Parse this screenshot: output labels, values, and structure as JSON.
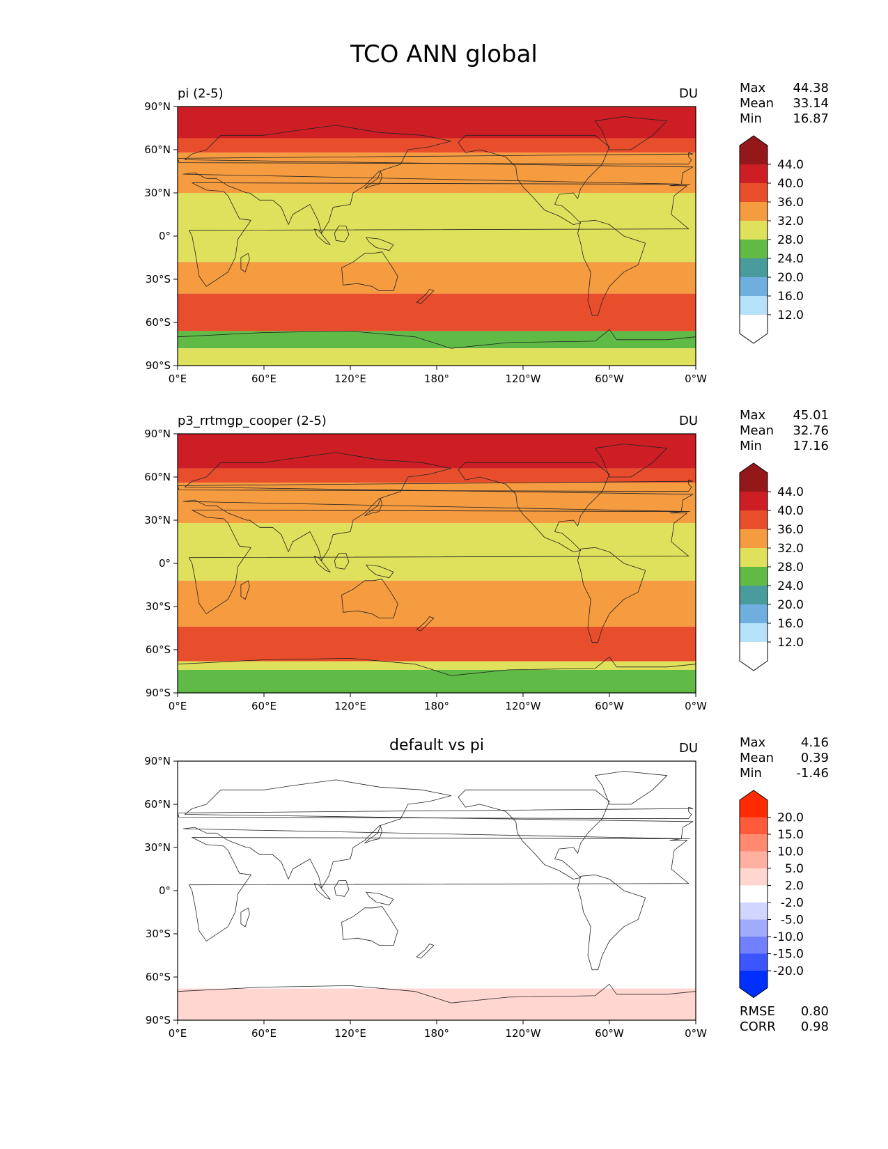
{
  "figure": {
    "title": "TCO ANN global"
  },
  "axes": {
    "y_ticks": [
      "90°N",
      "60°N",
      "30°N",
      "0°",
      "30°S",
      "60°S",
      "90°S"
    ],
    "x_ticks": [
      "0°E",
      "60°E",
      "120°E",
      "180°",
      "120°W",
      "60°W",
      "0°W"
    ]
  },
  "panels": [
    {
      "title": "pi (2-5)",
      "units": "DU",
      "stats": [
        {
          "label": "Max",
          "value": "44.38"
        },
        {
          "label": "Mean",
          "value": "33.14"
        },
        {
          "label": "Min",
          "value": "16.87"
        }
      ],
      "colorbar": {
        "labels": [
          "44.0",
          "40.0",
          "36.0",
          "32.0",
          "28.0",
          "24.0",
          "20.0",
          "16.0",
          "12.0"
        ],
        "colors": [
          "#941719",
          "#cc1e24",
          "#e84e2c",
          "#f59b40",
          "#dfe05b",
          "#60bb46",
          "#4a9b9b",
          "#6fafdf",
          "#b5e2f8",
          "#ffffff"
        ]
      },
      "bands": [
        {
          "lat_from": 90,
          "lat_to": 68,
          "color": "#cc1e24"
        },
        {
          "lat_from": 68,
          "lat_to": 58,
          "color": "#e84e2c"
        },
        {
          "lat_from": 58,
          "lat_to": 30,
          "color": "#f59b40"
        },
        {
          "lat_from": 30,
          "lat_to": -18,
          "color": "#dfe05b"
        },
        {
          "lat_from": -18,
          "lat_to": -40,
          "color": "#f59b40"
        },
        {
          "lat_from": -40,
          "lat_to": -66,
          "color": "#e84e2c"
        },
        {
          "lat_from": -66,
          "lat_to": -78,
          "color": "#60bb46"
        },
        {
          "lat_from": -78,
          "lat_to": -90,
          "color": "#dfe05b"
        }
      ]
    },
    {
      "title": "p3_rrtmgp_cooper (2-5)",
      "units": "DU",
      "stats": [
        {
          "label": "Max",
          "value": "45.01"
        },
        {
          "label": "Mean",
          "value": "32.76"
        },
        {
          "label": "Min",
          "value": "17.16"
        }
      ],
      "colorbar": {
        "labels": [
          "44.0",
          "40.0",
          "36.0",
          "32.0",
          "28.0",
          "24.0",
          "20.0",
          "16.0",
          "12.0"
        ],
        "colors": [
          "#941719",
          "#cc1e24",
          "#e84e2c",
          "#f59b40",
          "#dfe05b",
          "#60bb46",
          "#4a9b9b",
          "#6fafdf",
          "#b5e2f8",
          "#ffffff"
        ]
      },
      "bands": [
        {
          "lat_from": 90,
          "lat_to": 66,
          "color": "#cc1e24"
        },
        {
          "lat_from": 66,
          "lat_to": 56,
          "color": "#e84e2c"
        },
        {
          "lat_from": 56,
          "lat_to": 28,
          "color": "#f59b40"
        },
        {
          "lat_from": 28,
          "lat_to": -12,
          "color": "#dfe05b"
        },
        {
          "lat_from": -12,
          "lat_to": -44,
          "color": "#f59b40"
        },
        {
          "lat_from": -44,
          "lat_to": -68,
          "color": "#e84e2c"
        },
        {
          "lat_from": -68,
          "lat_to": -74,
          "color": "#dfe05b"
        },
        {
          "lat_from": -74,
          "lat_to": -90,
          "color": "#60bb46"
        }
      ]
    },
    {
      "title": "default vs pi",
      "units": "DU",
      "stats": [
        {
          "label": "Max",
          "value": "4.16"
        },
        {
          "label": "Mean",
          "value": "0.39"
        },
        {
          "label": "Min",
          "value": "-1.46"
        }
      ],
      "extra_stats": [
        {
          "label": "RMSE",
          "value": "0.80"
        },
        {
          "label": "CORR",
          "value": "0.98"
        }
      ],
      "colorbar": {
        "labels": [
          "20.0",
          "15.0",
          "10.0",
          "5.0",
          "2.0",
          "-2.0",
          "-5.0",
          "-10.0",
          "-15.0",
          "-20.0"
        ],
        "colors": [
          "#ff2a00",
          "#ff5a3c",
          "#ff8a70",
          "#ffb0a0",
          "#ffd6d0",
          "#ffffff",
          "#d0d6ff",
          "#a0aaff",
          "#7080ff",
          "#3c55ff",
          "#0030ff"
        ]
      },
      "bands": [
        {
          "lat_from": 90,
          "lat_to": -68,
          "color": "#ffffff"
        },
        {
          "lat_from": -68,
          "lat_to": -90,
          "color": "#ffd6d0"
        }
      ]
    }
  ]
}
